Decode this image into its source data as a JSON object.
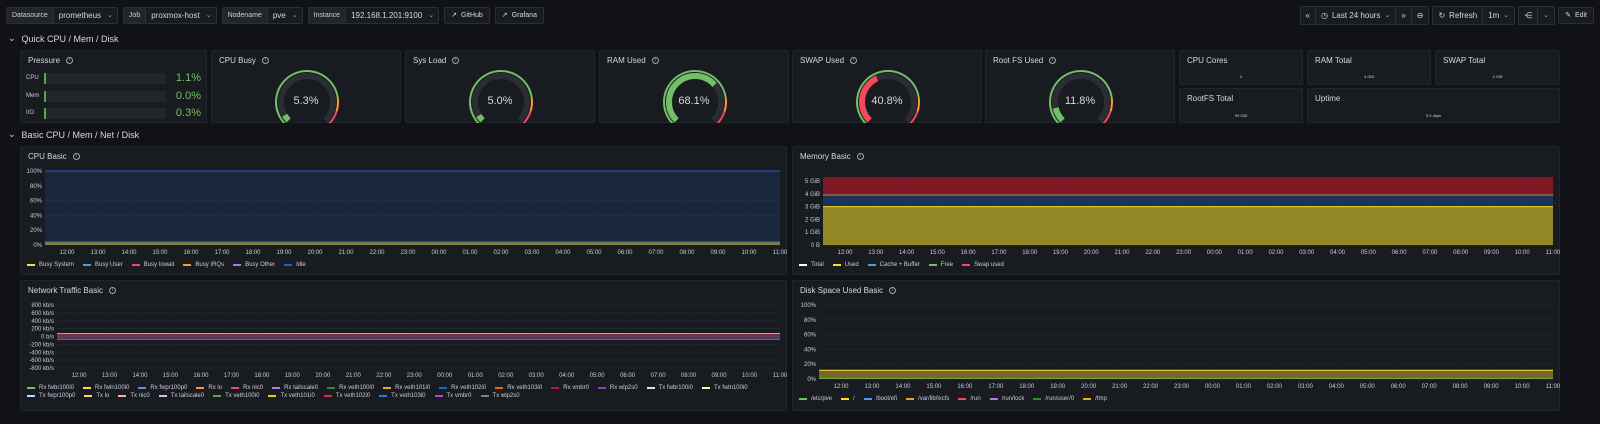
{
  "toolbar": {
    "vars": [
      {
        "label": "Datasource",
        "value": "prometheus"
      },
      {
        "label": "Job",
        "value": "proxmox-host"
      },
      {
        "label": "Nodename",
        "value": "pve"
      },
      {
        "label": "Instance",
        "value": "192.168.1.201:9100"
      }
    ],
    "links": [
      "GitHub",
      "Grafana"
    ],
    "time_range": "Last 24 hours",
    "refresh_label": "Refresh",
    "refresh_interval": "1m",
    "edit_label": "Edit"
  },
  "rows": {
    "quick": "Quick CPU / Mem / Disk",
    "basic": "Basic CPU / Mem / Net / Disk"
  },
  "pressure": {
    "title": "Pressure",
    "items": [
      {
        "name": "CPU",
        "value": "1.1%",
        "fraction": 0.011
      },
      {
        "name": "Mem",
        "value": "0.0%",
        "fraction": 0.0
      },
      {
        "name": "I/O",
        "value": "0.3%",
        "fraction": 0.003
      }
    ]
  },
  "gauges": [
    {
      "title": "CPU Busy",
      "value": "5.3%",
      "fraction": 0.053
    },
    {
      "title": "Sys Load",
      "value": "5.0%",
      "fraction": 0.05
    },
    {
      "title": "RAM Used",
      "value": "68.1%",
      "fraction": 0.681
    },
    {
      "title": "SWAP Used",
      "value": "40.8%",
      "fraction": 0.408
    },
    {
      "title": "Root FS Used",
      "value": "11.8%",
      "fraction": 0.118
    }
  ],
  "stats": [
    {
      "title": "CPU Cores",
      "value": "4"
    },
    {
      "title": "RAM Total",
      "value": "4 GiB"
    },
    {
      "title": "SWAP Total",
      "value": "4 GiB"
    },
    {
      "title": "RootFS Total",
      "value": "99 GiB"
    },
    {
      "title": "Uptime",
      "value": "5.9 days"
    }
  ],
  "colors": {
    "green": "#73bf69",
    "yellow": "#fade2a",
    "orange": "#ff9830",
    "red": "#f2495c",
    "blue": "#5794f2",
    "panel": "#181b1f",
    "bg": "#111217"
  },
  "x_ticks": [
    "12:00",
    "13:00",
    "14:00",
    "15:00",
    "16:00",
    "17:00",
    "18:00",
    "19:00",
    "20:00",
    "21:00",
    "22:00",
    "23:00",
    "00:00",
    "01:00",
    "02:00",
    "03:00",
    "04:00",
    "05:00",
    "06:00",
    "07:00",
    "08:00",
    "09:00",
    "10:00",
    "11:00"
  ],
  "cpu_basic": {
    "title": "CPU Basic",
    "y_ticks": [
      "100%",
      "80%",
      "60%",
      "40%",
      "20%",
      "0%"
    ],
    "legend": [
      {
        "name": "Busy System",
        "color": "#fade2a"
      },
      {
        "name": "Busy User",
        "color": "#5794f2"
      },
      {
        "name": "Busy Iowait",
        "color": "#f2495c"
      },
      {
        "name": "Busy IRQs",
        "color": "#ff9830"
      },
      {
        "name": "Busy Other",
        "color": "#b877d9"
      },
      {
        "name": "Idle",
        "color": "#1f60c4"
      }
    ]
  },
  "memory_basic": {
    "title": "Memory Basic",
    "y_ticks": [
      "5 GiB",
      "4 GiB",
      "3 GiB",
      "2 GiB",
      "1 GiB",
      "0 B"
    ],
    "legend": [
      {
        "name": "Total",
        "color": "#ffffff"
      },
      {
        "name": "Used",
        "color": "#fade2a"
      },
      {
        "name": "Cache + Buffer",
        "color": "#5794f2"
      },
      {
        "name": "Free",
        "color": "#73bf69"
      },
      {
        "name": "Swap used",
        "color": "#f2495c"
      }
    ]
  },
  "network_basic": {
    "title": "Network Traffic Basic",
    "y_ticks": [
      "800 kb/s",
      "600 kb/s",
      "400 kb/s",
      "200 kb/s",
      "0 b/s",
      "-200 kb/s",
      "-400 kb/s",
      "-600 kb/s",
      "-800 kb/s"
    ],
    "legend": [
      {
        "name": "Rx fwbr100i0",
        "color": "#73bf69"
      },
      {
        "name": "Rx fwln100i0",
        "color": "#fade2a"
      },
      {
        "name": "Rx fwpr100p0",
        "color": "#5794f2"
      },
      {
        "name": "Rx lo",
        "color": "#ff9830"
      },
      {
        "name": "Rx nic0",
        "color": "#f2495c"
      },
      {
        "name": "Rx tailscale0",
        "color": "#b877d9"
      },
      {
        "name": "Rx veth100i0",
        "color": "#37872d"
      },
      {
        "name": "Rx veth101i0",
        "color": "#e0b400"
      },
      {
        "name": "Rx veth102i0",
        "color": "#1f60c4"
      },
      {
        "name": "Rx veth103i0",
        "color": "#fa6400"
      },
      {
        "name": "Rx vmbr0",
        "color": "#c4162a"
      },
      {
        "name": "Rx wlp2s0",
        "color": "#8f3bb8"
      },
      {
        "name": "Tx fwbr100i0",
        "color": "#c8f2c2"
      },
      {
        "name": "Tx fwln100i0",
        "color": "#fff899"
      },
      {
        "name": "Tx fwpr100p0",
        "color": "#c0d8ff"
      },
      {
        "name": "Tx lo",
        "color": "#ffcb7d"
      },
      {
        "name": "Tx nic0",
        "color": "#ffa6b0"
      },
      {
        "name": "Tx tailscale0",
        "color": "#deb6f2"
      },
      {
        "name": "Tx veth100i0",
        "color": "#56a64b"
      },
      {
        "name": "Tx veth101i0",
        "color": "#f2cc0c"
      },
      {
        "name": "Tx veth102i0",
        "color": "#e02f44"
      },
      {
        "name": "Tx veth103i0",
        "color": "#3274d9"
      },
      {
        "name": "Tx vmbr0",
        "color": "#a352cc"
      },
      {
        "name": "Tx wlp2s0",
        "color": "#808080"
      }
    ]
  },
  "disk_basic": {
    "title": "Disk Space Used Basic",
    "y_ticks": [
      "100%",
      "80%",
      "60%",
      "40%",
      "20%",
      "0%"
    ],
    "legend": [
      {
        "name": "/etc/pve",
        "color": "#73bf69"
      },
      {
        "name": "/",
        "color": "#fade2a"
      },
      {
        "name": "/boot/efi",
        "color": "#5794f2"
      },
      {
        "name": "/var/lib/lxcfs",
        "color": "#ff9830"
      },
      {
        "name": "/run",
        "color": "#f2495c"
      },
      {
        "name": "/run/lock",
        "color": "#b877d9"
      },
      {
        "name": "/run/user/0",
        "color": "#37872d"
      },
      {
        "name": "/tmp",
        "color": "#e0b400"
      }
    ]
  }
}
